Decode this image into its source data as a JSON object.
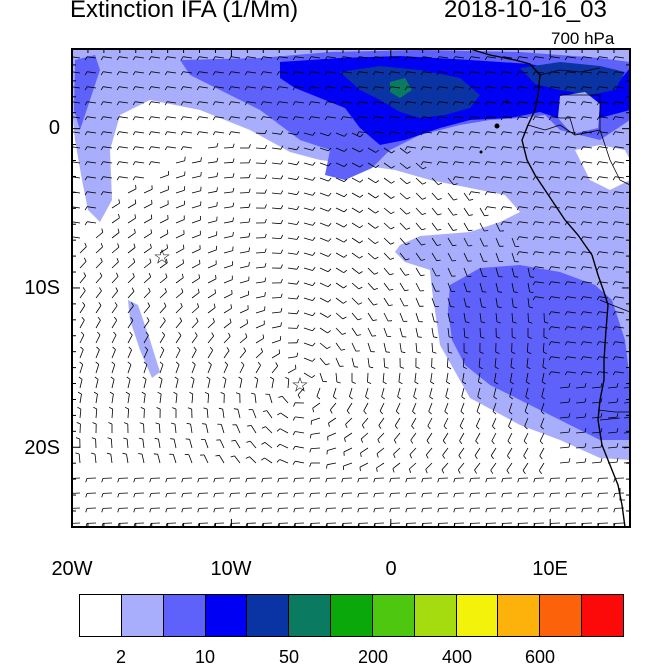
{
  "header": {
    "title": "Extinction IFA (1/Mm)",
    "datetime": "2018-10-16_03",
    "level": "700 hPa"
  },
  "axes": {
    "lat_labels": [
      "0",
      "10S",
      "20S"
    ],
    "lon_labels": [
      "20W",
      "10W",
      "0",
      "10E"
    ]
  },
  "map": {
    "lon_range": [
      -20,
      15
    ],
    "lat_range": [
      -25,
      5
    ],
    "field": "aerosol extinction",
    "wind_vectors": "shown",
    "coastline": "Africa west coast",
    "markers": [
      {
        "symbol": "star",
        "lon": -14.4,
        "lat": -8
      },
      {
        "symbol": "star",
        "lon": -5.7,
        "lat": -16
      }
    ]
  },
  "colorbar": {
    "colors": [
      "#ffffff",
      "#a9aefc",
      "#5e62fb",
      "#0000f4",
      "#0a33a3",
      "#0a7a60",
      "#0aa80a",
      "#4dc70f",
      "#a5dc0f",
      "#f2f20a",
      "#fcb20a",
      "#fc620a",
      "#fc0a0a"
    ],
    "labels": [
      "2",
      "10",
      "50",
      "200",
      "400",
      "600"
    ]
  }
}
